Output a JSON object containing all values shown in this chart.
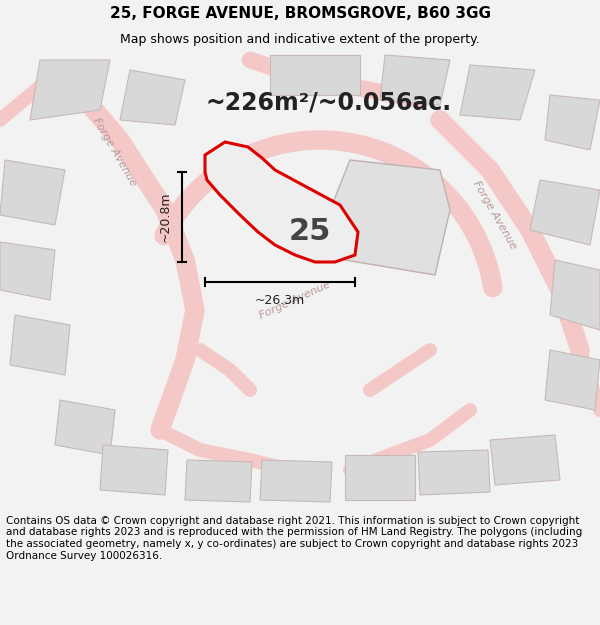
{
  "title": "25, FORGE AVENUE, BROMSGROVE, B60 3GG",
  "subtitle": "Map shows position and indicative extent of the property.",
  "footer": "Contains OS data © Crown copyright and database right 2021. This information is subject to Crown copyright and database rights 2023 and is reproduced with the permission of HM Land Registry. The polygons (including the associated geometry, namely x, y co-ordinates) are subject to Crown copyright and database rights 2023 Ordnance Survey 100026316.",
  "area_label": "~226m²/~0.056ac.",
  "plot_number": "25",
  "dim1_label": "~20.8m",
  "dim2_label": "~26.3m",
  "bg_color": "#f2f2f2",
  "road_color": "#f5c8c8",
  "building_fill": "#d8d8d8",
  "building_edge": "#c8b8b8",
  "plot_fill": "#eeeeee",
  "plot_edge": "#dd0000",
  "title_fontsize": 11,
  "subtitle_fontsize": 9,
  "footer_fontsize": 7.5
}
